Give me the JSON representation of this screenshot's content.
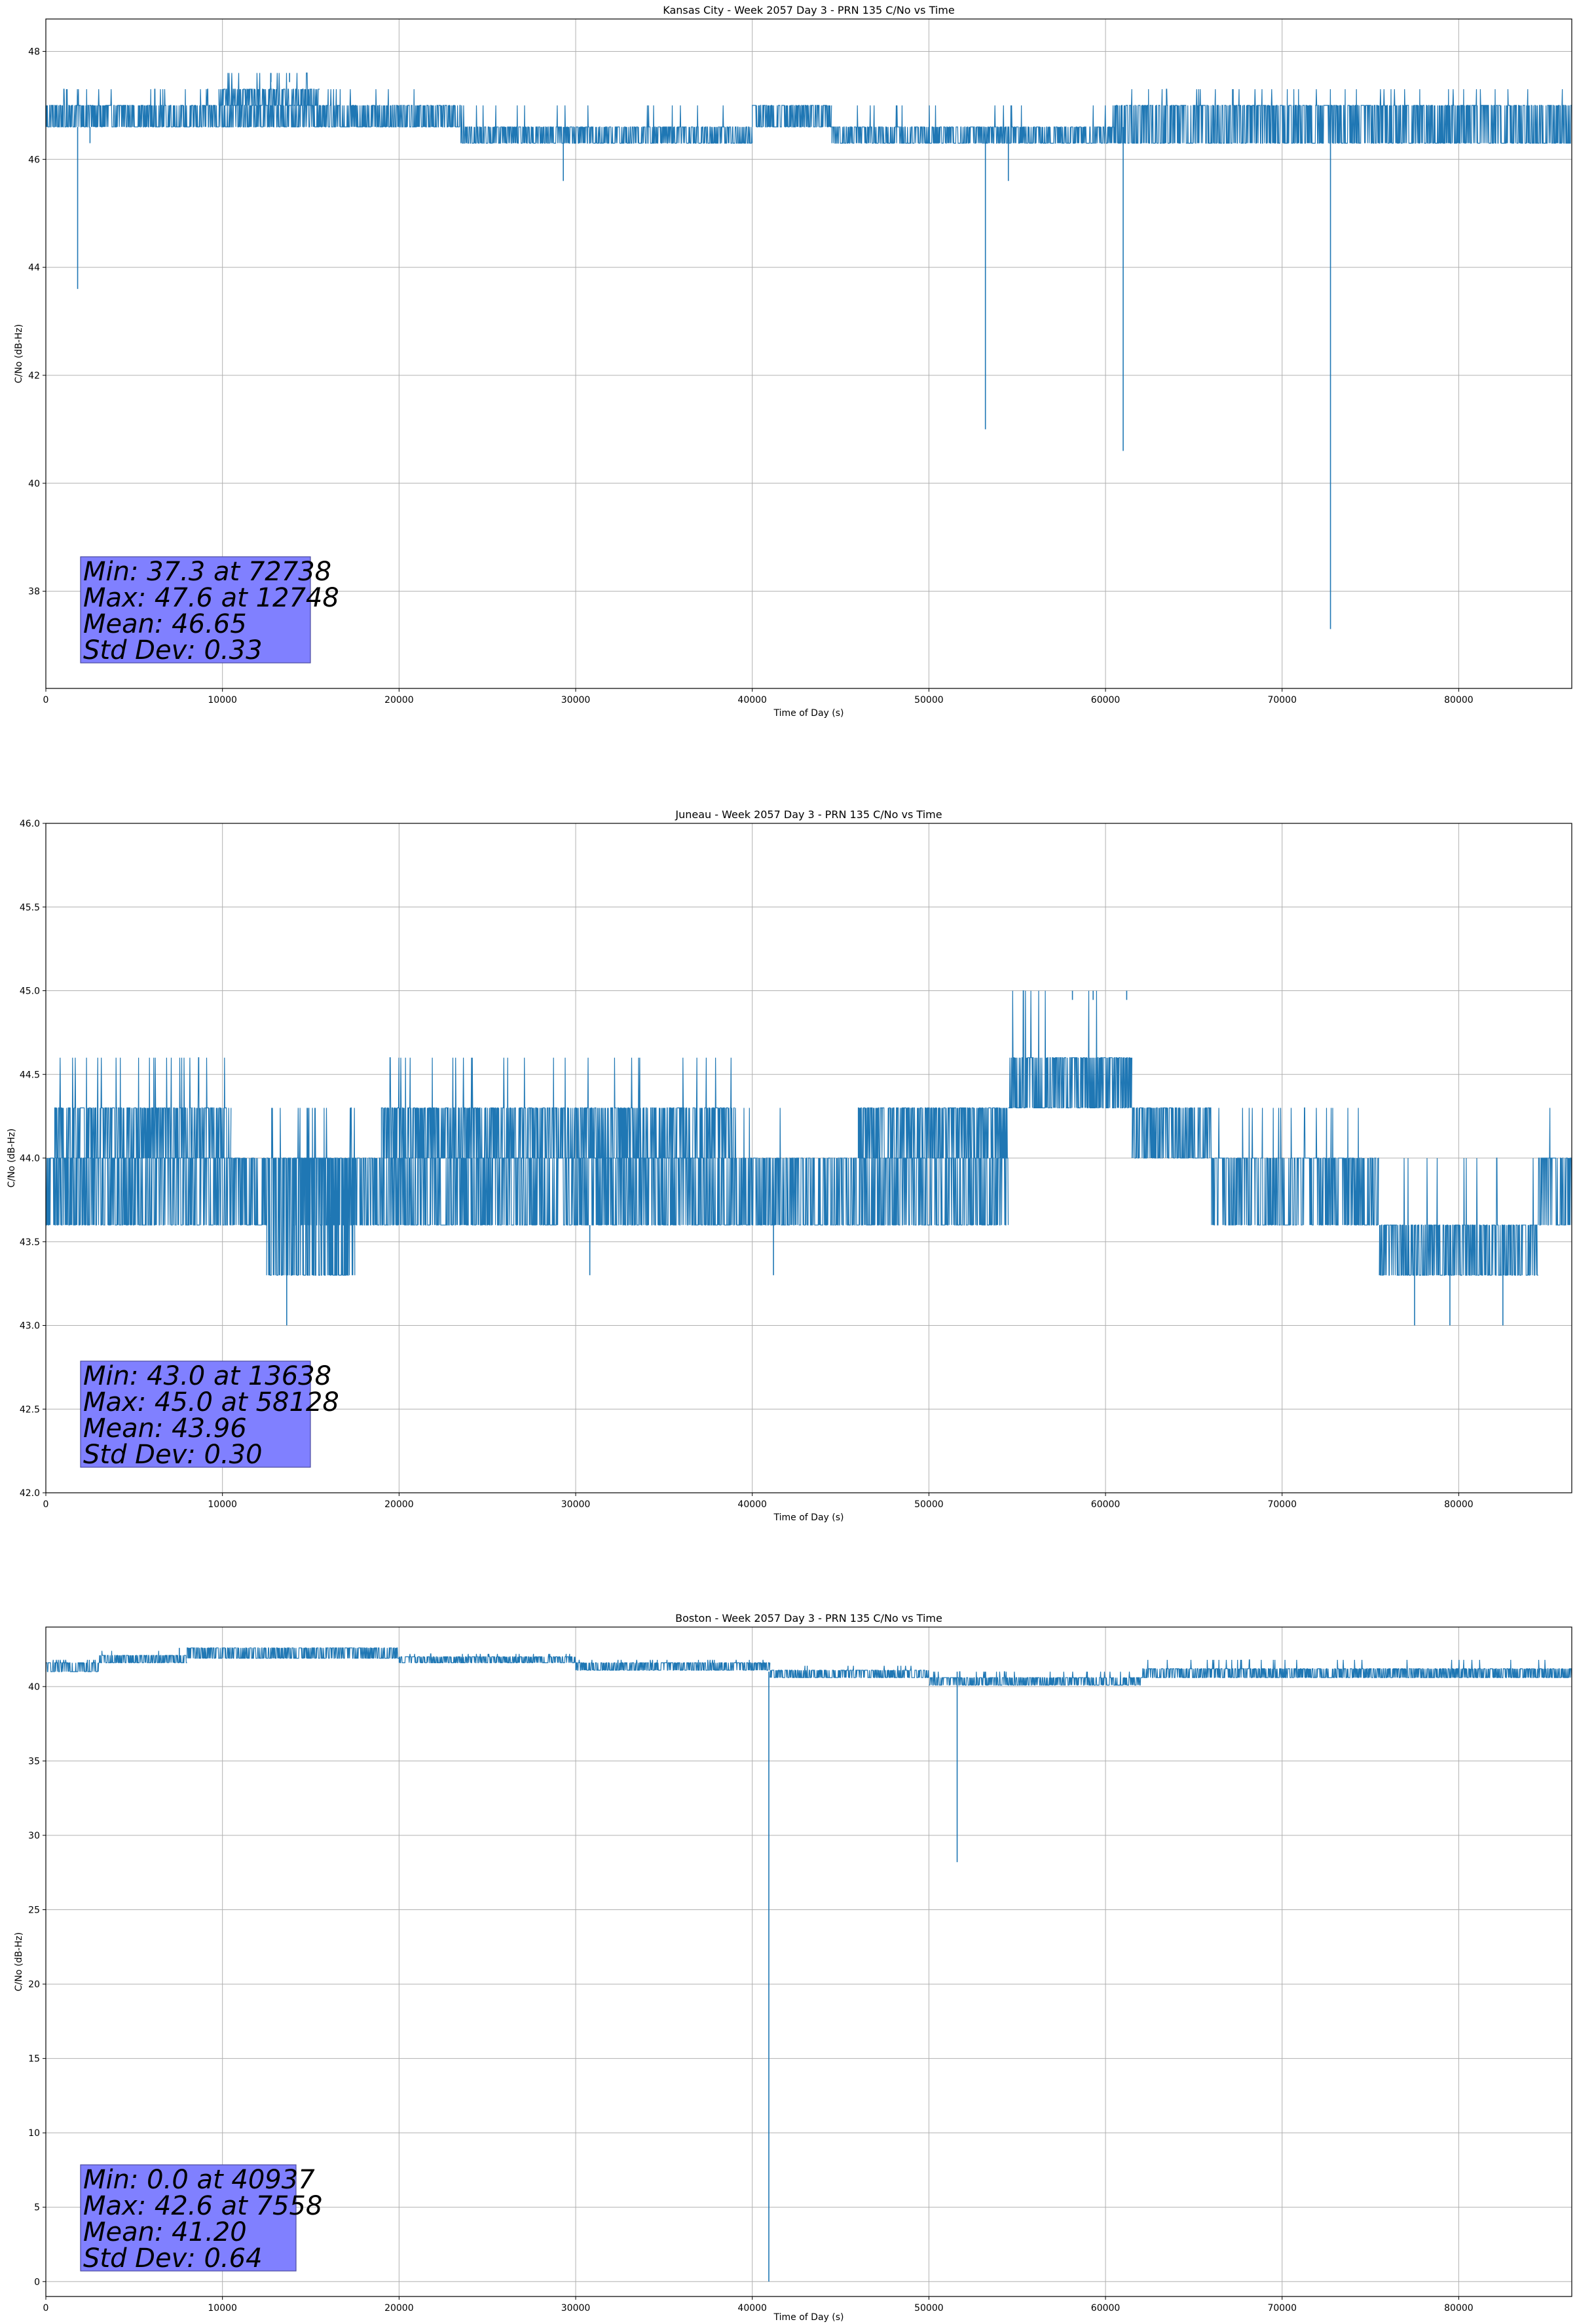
{
  "chart_data": [
    {
      "type": "line",
      "title": "Kansas City - Week 2057 Day 3 - PRN 135 C/No vs Time",
      "xlabel": "Time of Day (s)",
      "ylabel": "C/No (dB-Hz)",
      "xlim": [
        0,
        86400
      ],
      "ylim": [
        36.2,
        48.6
      ],
      "xticks": [
        0,
        10000,
        20000,
        30000,
        40000,
        50000,
        60000,
        70000,
        80000
      ],
      "yticks": [
        38,
        40,
        42,
        44,
        46,
        48
      ],
      "ytick_format": 0,
      "grid": true,
      "series_color": "#1f77b4",
      "series": [
        {
          "segments": [
            {
              "start": 0,
              "end": 15500,
              "low": 46.6,
              "high": 47.0,
              "hi_spike": 47.3
            },
            {
              "start": 9800,
              "end": 15500,
              "low": 47.0,
              "high": 47.3,
              "hi_spike": 47.6
            },
            {
              "start": 15500,
              "end": 23500,
              "low": 46.6,
              "high": 47.0,
              "hi_spike": 47.3
            },
            {
              "start": 23500,
              "end": 40000,
              "low": 46.3,
              "high": 46.6,
              "hi_spike": 47.0
            },
            {
              "start": 40000,
              "end": 44500,
              "low": 46.6,
              "high": 47.0,
              "hi_spike": 47.0
            },
            {
              "start": 44500,
              "end": 60500,
              "low": 46.3,
              "high": 46.6,
              "hi_spike": 47.0
            },
            {
              "start": 60500,
              "end": 86400,
              "low": 46.3,
              "high": 47.0,
              "hi_spike": 47.3
            }
          ],
          "dips": [
            {
              "x": 1800,
              "y": 43.6
            },
            {
              "x": 2500,
              "y": 46.3
            },
            {
              "x": 29300,
              "y": 45.6
            },
            {
              "x": 53200,
              "y": 41.0
            },
            {
              "x": 54500,
              "y": 45.6
            },
            {
              "x": 61000,
              "y": 40.6
            },
            {
              "x": 72738,
              "y": 37.3
            }
          ],
          "peaks": [
            {
              "x": 12748,
              "y": 47.6
            },
            {
              "x": 13800,
              "y": 47.6
            }
          ]
        }
      ],
      "stats": {
        "min": "Min: 37.3 at 72738",
        "max": "Max: 47.6 at 12748",
        "mean": "Mean: 46.65",
        "std": "Std Dev: 0.33"
      }
    },
    {
      "type": "line",
      "title": "Juneau - Week 2057 Day 3 - PRN 135 C/No vs Time",
      "xlabel": "Time of Day (s)",
      "ylabel": "C/No (dB-Hz)",
      "xlim": [
        0,
        86400
      ],
      "ylim": [
        42.0,
        46.0
      ],
      "xticks": [
        0,
        10000,
        20000,
        30000,
        40000,
        50000,
        60000,
        70000,
        80000
      ],
      "yticks": [
        42.0,
        42.5,
        43.0,
        43.5,
        44.0,
        44.5,
        45.0,
        45.5,
        46.0
      ],
      "ytick_format": 1,
      "grid": true,
      "series_color": "#1f77b4",
      "series": [
        {
          "segments": [
            {
              "start": 0,
              "end": 2500,
              "low": 43.6,
              "high": 44.0,
              "hi_spike": 44.3
            },
            {
              "start": 500,
              "end": 10500,
              "low": 44.0,
              "high": 44.3,
              "hi_spike": 44.6
            },
            {
              "start": 2500,
              "end": 12500,
              "low": 43.6,
              "high": 44.0,
              "hi_spike": 44.0
            },
            {
              "start": 12500,
              "end": 17500,
              "low": 43.3,
              "high": 44.0,
              "hi_spike": 44.3
            },
            {
              "start": 14000,
              "end": 39000,
              "low": 43.6,
              "high": 44.0,
              "hi_spike": 44.3
            },
            {
              "start": 19000,
              "end": 39000,
              "low": 44.0,
              "high": 44.3,
              "hi_spike": 44.6
            },
            {
              "start": 39000,
              "end": 46000,
              "low": 43.6,
              "high": 44.0,
              "hi_spike": 44.3
            },
            {
              "start": 46000,
              "end": 54500,
              "low": 43.6,
              "high": 44.0,
              "hi_spike": 44.3
            },
            {
              "start": 46000,
              "end": 54500,
              "low": 44.0,
              "high": 44.3,
              "hi_spike": 44.3
            },
            {
              "start": 54500,
              "end": 61500,
              "low": 44.3,
              "high": 44.6,
              "hi_spike": 45.0
            },
            {
              "start": 61500,
              "end": 66000,
              "low": 44.0,
              "high": 44.3,
              "hi_spike": 44.3
            },
            {
              "start": 66000,
              "end": 75500,
              "low": 43.6,
              "high": 44.0,
              "hi_spike": 44.3
            },
            {
              "start": 75500,
              "end": 84500,
              "low": 43.3,
              "high": 43.6,
              "hi_spike": 44.0
            },
            {
              "start": 84500,
              "end": 86400,
              "low": 43.6,
              "high": 44.0,
              "hi_spike": 44.3
            }
          ],
          "dips": [
            {
              "x": 13638,
              "y": 43.0
            },
            {
              "x": 30800,
              "y": 43.3
            },
            {
              "x": 41200,
              "y": 43.3
            },
            {
              "x": 77500,
              "y": 43.0
            },
            {
              "x": 79500,
              "y": 43.0
            },
            {
              "x": 82500,
              "y": 43.0
            }
          ],
          "peaks": [
            {
              "x": 58128,
              "y": 45.0
            },
            {
              "x": 59300,
              "y": 45.0
            },
            {
              "x": 61200,
              "y": 45.0
            }
          ]
        }
      ],
      "stats": {
        "min": "Min: 43.0 at 13638",
        "max": "Max: 45.0 at 58128",
        "mean": "Mean: 43.96",
        "std": "Std Dev: 0.30"
      }
    },
    {
      "type": "line",
      "title": "Boston - Week 2057 Day 3 - PRN 135 C/No vs Time",
      "xlabel": "Time of Day (s)",
      "ylabel": "C/No (dB-Hz)",
      "xlim": [
        0,
        86400
      ],
      "ylim": [
        -1.0,
        44.0
      ],
      "xticks": [
        0,
        10000,
        20000,
        30000,
        40000,
        50000,
        60000,
        70000,
        80000
      ],
      "yticks": [
        0,
        5,
        10,
        15,
        20,
        25,
        30,
        35,
        40
      ],
      "ytick_format": 0,
      "grid": true,
      "series_color": "#1f77b4",
      "series": [
        {
          "segments": [
            {
              "start": 0,
              "end": 3000,
              "low": 41.0,
              "high": 41.6,
              "hi_spike": 41.8
            },
            {
              "start": 3000,
              "end": 8000,
              "low": 41.6,
              "high": 42.1,
              "hi_spike": 42.4
            },
            {
              "start": 8000,
              "end": 20000,
              "low": 41.9,
              "high": 42.6,
              "hi_spike": 42.6
            },
            {
              "start": 20000,
              "end": 30000,
              "low": 41.6,
              "high": 42.0,
              "hi_spike": 42.2
            },
            {
              "start": 30000,
              "end": 41000,
              "low": 41.1,
              "high": 41.6,
              "hi_spike": 41.8
            },
            {
              "start": 41000,
              "end": 50000,
              "low": 40.6,
              "high": 41.1,
              "hi_spike": 41.4
            },
            {
              "start": 50000,
              "end": 62000,
              "low": 40.1,
              "high": 40.6,
              "hi_spike": 41.0
            },
            {
              "start": 62000,
              "end": 86400,
              "low": 40.6,
              "high": 41.2,
              "hi_spike": 41.8
            }
          ],
          "dips": [
            {
              "x": 40937,
              "y": 0.0
            },
            {
              "x": 51600,
              "y": 28.2
            }
          ],
          "peaks": [
            {
              "x": 7558,
              "y": 42.6
            }
          ]
        }
      ],
      "stats": {
        "min": "Min: 0.0 at 40937",
        "max": "Max: 42.6 at 7558",
        "mean": "Mean: 41.20",
        "std": "Std Dev: 0.64"
      }
    }
  ]
}
